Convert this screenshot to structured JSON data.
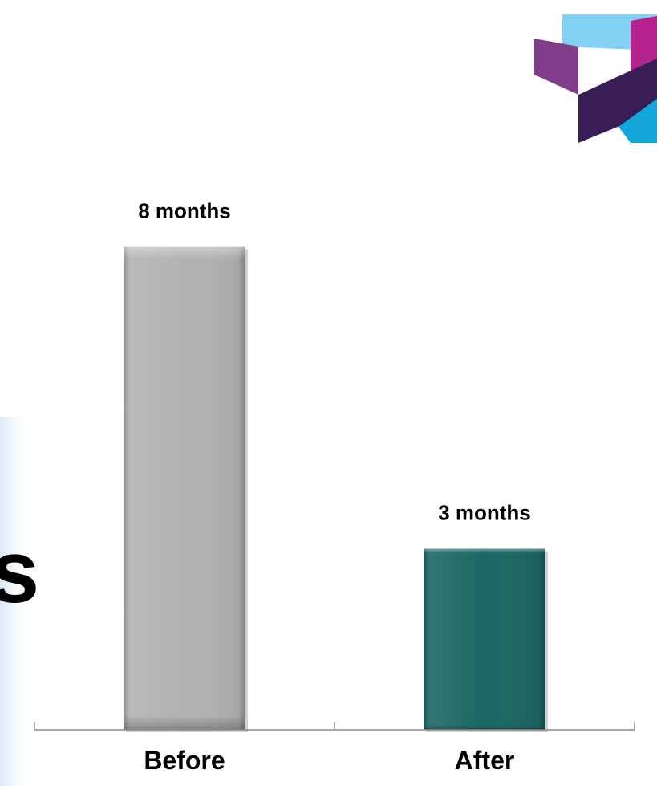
{
  "background_text": "s",
  "chart_data": {
    "type": "bar",
    "categories": [
      "Before",
      "After"
    ],
    "values": [
      8,
      3
    ],
    "data_labels": [
      "8 months",
      "3 months"
    ],
    "bar_colors": [
      "#b2b2b2",
      "#1b6765"
    ],
    "title": "",
    "xlabel": "",
    "ylabel": "",
    "ylim": [
      0,
      8.5
    ],
    "grid": false,
    "legend": "none"
  },
  "logo": {
    "icon": "ribbon-logo",
    "colors": [
      "#7f3d8a",
      "#b5238e",
      "#82d0f2",
      "#3b1d55",
      "#13a6d8"
    ]
  }
}
